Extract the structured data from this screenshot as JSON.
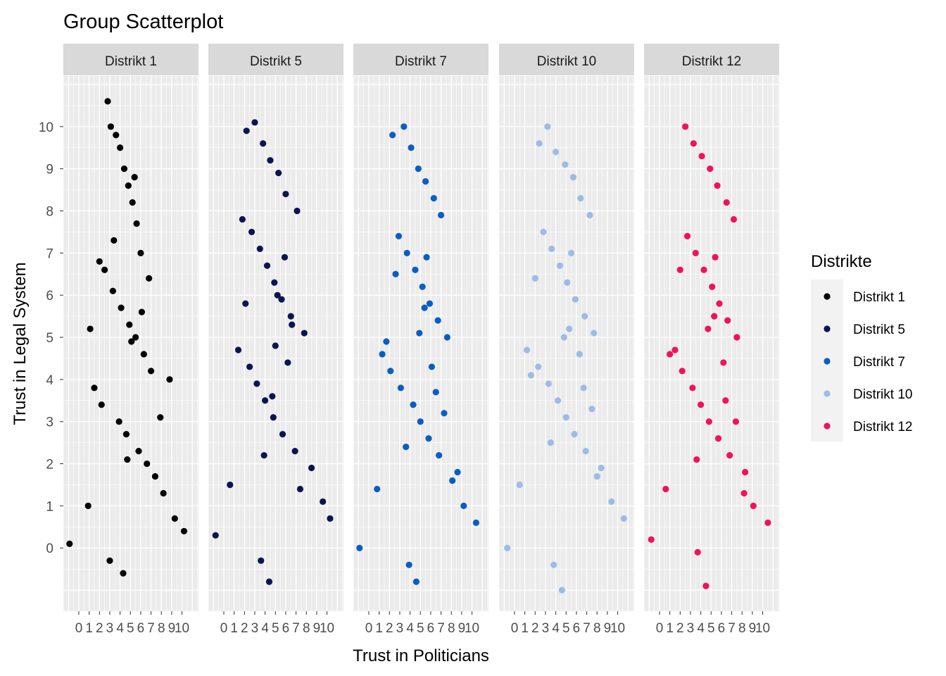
{
  "chart_data": {
    "type": "scatter",
    "title": "Group Scatterplot",
    "xlabel": "Trust in Politicians",
    "ylabel": "Trust in Legal System",
    "x_ticks": [
      0,
      1,
      2,
      3,
      4,
      5,
      6,
      7,
      8,
      9,
      10
    ],
    "y_ticks": [
      0,
      1,
      2,
      3,
      4,
      5,
      6,
      7,
      8,
      9,
      10
    ],
    "xlim": [
      -1.5,
      11.6
    ],
    "ylim": [
      -1.5,
      11.2
    ],
    "grid": true,
    "facet_by": "Distrikte",
    "legend": {
      "title": "Distrikte",
      "placement": "right"
    },
    "series": [
      {
        "name": "Distrikt 1",
        "color": "#000000",
        "x": [
          2.8,
          3.1,
          3.6,
          4.0,
          4.4,
          4.8,
          5.2,
          5.6,
          6.0,
          2.5,
          3.3,
          4.1,
          4.9,
          5.5,
          6.3,
          7.0,
          1.5,
          2.2,
          3.9,
          4.6,
          5.8,
          6.6,
          7.4,
          8.2,
          0.9,
          9.3,
          10.2,
          -0.9,
          3.0,
          4.3,
          5.1,
          6.1,
          2.0,
          7.9,
          4.7,
          3.4,
          5.4,
          1.1,
          8.8,
          6.8
        ],
        "y": [
          10.6,
          10.0,
          9.8,
          9.5,
          9.0,
          8.6,
          8.2,
          7.7,
          7.0,
          6.6,
          6.1,
          5.7,
          5.3,
          5.0,
          4.6,
          4.2,
          3.8,
          3.4,
          3.0,
          2.7,
          2.3,
          2.0,
          1.7,
          1.3,
          1.0,
          0.7,
          0.4,
          0.1,
          -0.3,
          -0.6,
          4.9,
          5.6,
          6.8,
          3.1,
          2.1,
          7.3,
          8.8,
          5.2,
          4.0,
          6.4
        ]
      },
      {
        "name": "Distrikt 5",
        "color": "#0a1550",
        "x": [
          2.2,
          3.0,
          3.8,
          4.5,
          5.3,
          6.0,
          7.1,
          2.7,
          3.5,
          4.2,
          4.9,
          5.6,
          6.5,
          7.8,
          1.4,
          2.5,
          3.2,
          4.0,
          4.8,
          5.7,
          6.9,
          8.5,
          0.6,
          9.6,
          10.3,
          -0.8,
          3.6,
          4.4,
          5.2,
          6.2,
          2.1,
          4.7,
          5.9,
          3.9,
          5.0,
          1.8,
          7.4,
          6.6
        ],
        "y": [
          9.9,
          10.1,
          9.6,
          9.2,
          8.9,
          8.4,
          8.0,
          7.5,
          7.1,
          6.7,
          6.3,
          5.9,
          5.5,
          5.1,
          4.7,
          4.3,
          3.9,
          3.5,
          3.1,
          2.7,
          2.3,
          1.9,
          1.5,
          1.1,
          0.7,
          0.3,
          -0.3,
          -0.8,
          6.0,
          4.4,
          5.8,
          3.6,
          6.9,
          2.2,
          4.8,
          7.8,
          1.4,
          5.3
        ]
      },
      {
        "name": "Distrikt 7",
        "color": "#0a5ec0",
        "x": [
          2.3,
          3.4,
          4.1,
          4.8,
          5.5,
          6.3,
          7.0,
          2.9,
          3.7,
          4.5,
          5.2,
          5.9,
          6.7,
          7.6,
          1.3,
          2.1,
          3.1,
          4.3,
          5.0,
          5.8,
          6.8,
          8.6,
          0.8,
          9.2,
          10.4,
          -0.9,
          3.9,
          4.6,
          5.4,
          6.1,
          2.6,
          7.3,
          4.9,
          3.6,
          5.6,
          1.7,
          8.1,
          6.5
        ],
        "y": [
          9.8,
          10.0,
          9.5,
          9.0,
          8.7,
          8.3,
          7.9,
          7.4,
          7.0,
          6.6,
          6.2,
          5.8,
          5.4,
          5.0,
          4.6,
          4.2,
          3.8,
          3.4,
          3.0,
          2.6,
          2.2,
          1.8,
          1.4,
          1.0,
          0.6,
          0.0,
          -0.4,
          -0.8,
          5.7,
          4.3,
          6.5,
          3.2,
          5.1,
          2.4,
          6.9,
          4.9,
          1.6,
          3.7
        ]
      },
      {
        "name": "Distrikt 10",
        "color": "#9ebbe5",
        "x": [
          2.4,
          3.2,
          4.0,
          4.9,
          5.7,
          6.4,
          7.3,
          2.8,
          3.6,
          4.4,
          5.1,
          5.9,
          6.8,
          7.7,
          1.2,
          2.3,
          3.3,
          4.2,
          5.0,
          5.8,
          6.9,
          8.4,
          0.5,
          9.4,
          10.6,
          -0.7,
          3.8,
          4.6,
          5.3,
          6.3,
          2.0,
          7.5,
          4.8,
          3.5,
          5.5,
          1.6,
          8.0,
          6.7
        ],
        "y": [
          9.6,
          10.0,
          9.4,
          9.1,
          8.8,
          8.3,
          7.9,
          7.5,
          7.1,
          6.7,
          6.3,
          5.9,
          5.5,
          5.1,
          4.7,
          4.3,
          3.9,
          3.5,
          3.1,
          2.7,
          2.3,
          1.9,
          1.5,
          1.1,
          0.7,
          0.0,
          -0.4,
          -1.0,
          5.2,
          4.6,
          6.4,
          3.3,
          5.0,
          2.5,
          7.0,
          4.1,
          1.7,
          3.8
        ]
      },
      {
        "name": "Distrikt 12",
        "color": "#f0115f",
        "x": [
          2.5,
          3.3,
          4.1,
          4.9,
          5.6,
          6.5,
          7.2,
          2.7,
          3.5,
          4.3,
          5.1,
          5.8,
          6.6,
          7.5,
          1.0,
          2.2,
          3.2,
          4.0,
          4.8,
          5.7,
          6.8,
          8.3,
          0.6,
          9.1,
          10.5,
          -0.8,
          3.7,
          4.5,
          5.3,
          6.2,
          2.0,
          7.4,
          4.7,
          3.6,
          5.4,
          1.5,
          8.2,
          6.4
        ],
        "y": [
          10.0,
          9.6,
          9.3,
          9.0,
          8.6,
          8.2,
          7.8,
          7.4,
          7.0,
          6.6,
          6.2,
          5.8,
          5.4,
          5.0,
          4.6,
          4.2,
          3.8,
          3.4,
          3.0,
          2.6,
          2.2,
          1.8,
          1.4,
          1.0,
          0.6,
          0.2,
          -0.1,
          -0.9,
          5.5,
          4.4,
          6.6,
          3.0,
          5.2,
          2.1,
          6.9,
          4.7,
          1.3,
          3.5
        ]
      }
    ]
  }
}
